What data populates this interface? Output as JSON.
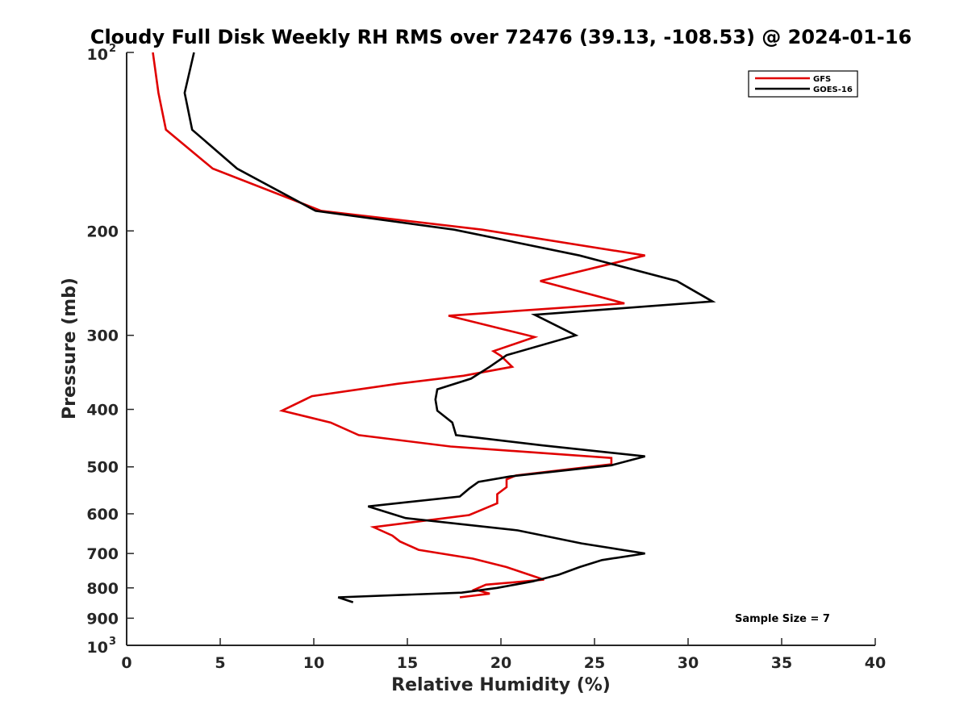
{
  "chart_data": {
    "type": "line",
    "title": "Cloudy Full Disk Weekly RH RMS over 72476 (39.13, -108.53) @ 2024-01-16",
    "xlabel": "Relative Humidity (%)",
    "ylabel": "Pressure (mb)",
    "xlim": [
      0,
      40
    ],
    "ylim": [
      100,
      1000
    ],
    "y_scale": "log",
    "y_reversed": true,
    "x_ticks": [
      0,
      5,
      10,
      15,
      20,
      25,
      30,
      35,
      40
    ],
    "x_tick_labels": [
      "0",
      "5",
      "10",
      "15",
      "20",
      "25",
      "30",
      "35",
      "40"
    ],
    "y_ticks": [
      200,
      300,
      400,
      500,
      600,
      700,
      800,
      900
    ],
    "y_tick_labels": [
      "200",
      "300",
      "400",
      "500",
      "600",
      "700",
      "800",
      "900"
    ],
    "y_end_labels": [
      {
        "value": 100,
        "base": "10",
        "exp": "2"
      },
      {
        "value": 1000,
        "base": "10",
        "exp": "3"
      }
    ],
    "grid": false,
    "legend_position": "top-right",
    "series": [
      {
        "name": "GFS",
        "color": "#e00000",
        "points": [
          [
            1.4,
            100
          ],
          [
            1.7,
            117
          ],
          [
            2.1,
            135
          ],
          [
            4.6,
            157
          ],
          [
            10.4,
            185
          ],
          [
            19.0,
            199
          ],
          [
            27.7,
            220
          ],
          [
            22.1,
            243
          ],
          [
            26.6,
            265
          ],
          [
            17.2,
            278
          ],
          [
            21.8,
            302
          ],
          [
            19.6,
            319
          ],
          [
            20.0,
            325
          ],
          [
            20.6,
            339
          ],
          [
            18.0,
            351
          ],
          [
            14.5,
            362
          ],
          [
            9.9,
            380
          ],
          [
            8.3,
            402
          ],
          [
            10.9,
            421
          ],
          [
            12.4,
            442
          ],
          [
            17.3,
            462
          ],
          [
            25.9,
            483
          ],
          [
            25.9,
            495
          ],
          [
            20.8,
            517
          ],
          [
            20.3,
            525
          ],
          [
            20.3,
            541
          ],
          [
            19.8,
            556
          ],
          [
            19.8,
            576
          ],
          [
            18.3,
            603
          ],
          [
            13.2,
            632
          ],
          [
            14.2,
            653
          ],
          [
            14.6,
            668
          ],
          [
            15.6,
            690
          ],
          [
            18.5,
            714
          ],
          [
            20.3,
            738
          ],
          [
            21.5,
            760
          ],
          [
            22.3,
            775
          ],
          [
            19.2,
            790
          ],
          [
            18.6,
            805
          ],
          [
            19.4,
            818
          ],
          [
            17.8,
            830
          ]
        ]
      },
      {
        "name": "GOES-16",
        "color": "#000000",
        "points": [
          [
            3.6,
            100
          ],
          [
            3.1,
            117
          ],
          [
            3.5,
            135
          ],
          [
            5.9,
            157
          ],
          [
            10.1,
            185
          ],
          [
            17.5,
            199
          ],
          [
            24.2,
            220
          ],
          [
            29.4,
            243
          ],
          [
            31.3,
            263
          ],
          [
            21.8,
            277
          ],
          [
            24.0,
            300
          ],
          [
            20.3,
            324
          ],
          [
            19.4,
            339
          ],
          [
            18.4,
            355
          ],
          [
            16.6,
            370
          ],
          [
            16.5,
            385
          ],
          [
            16.6,
            402
          ],
          [
            17.4,
            421
          ],
          [
            17.6,
            442
          ],
          [
            22.2,
            460
          ],
          [
            27.7,
            480
          ],
          [
            25.9,
            497
          ],
          [
            20.5,
            519
          ],
          [
            18.8,
            530
          ],
          [
            18.3,
            544
          ],
          [
            17.8,
            561
          ],
          [
            12.9,
            583
          ],
          [
            14.9,
            610
          ],
          [
            20.9,
            640
          ],
          [
            24.3,
            673
          ],
          [
            27.7,
            700
          ],
          [
            25.4,
            718
          ],
          [
            24.2,
            738
          ],
          [
            23.1,
            760
          ],
          [
            21.7,
            780
          ],
          [
            19.8,
            800
          ],
          [
            17.9,
            815
          ],
          [
            11.3,
            830
          ],
          [
            12.1,
            846
          ]
        ]
      }
    ],
    "annotation": "Sample Size = 7"
  }
}
